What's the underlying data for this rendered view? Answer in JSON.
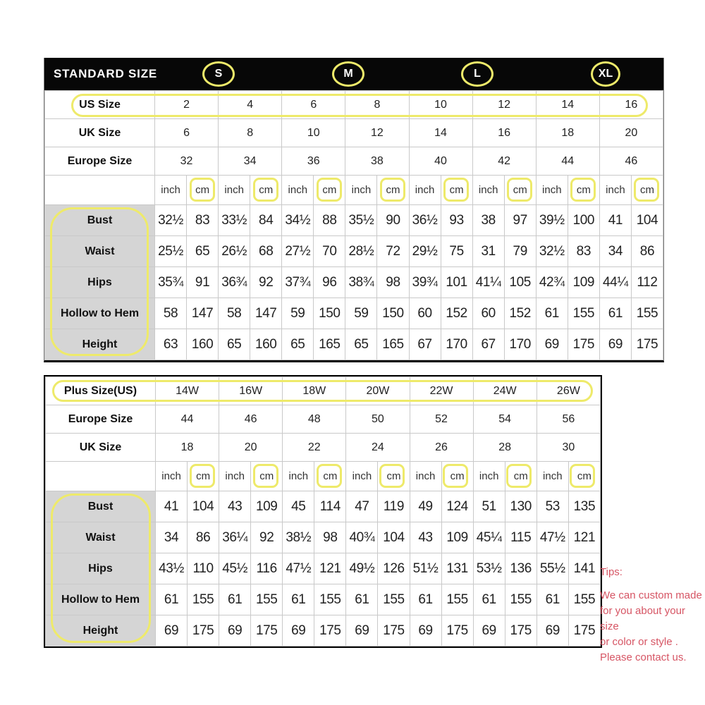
{
  "standard_table": {
    "title": "STANDARD SIZE",
    "header_sizes": [
      "S",
      "M",
      "L",
      "XL"
    ],
    "units": [
      "inch",
      "cm"
    ],
    "size_rows": [
      {
        "label": "US Size",
        "values": [
          "2",
          "4",
          "6",
          "8",
          "10",
          "12",
          "14",
          "16"
        ]
      },
      {
        "label": "UK Size",
        "values": [
          "6",
          "8",
          "10",
          "12",
          "14",
          "16",
          "18",
          "20"
        ]
      },
      {
        "label": "Europe Size",
        "values": [
          "32",
          "34",
          "36",
          "38",
          "40",
          "42",
          "44",
          "46"
        ]
      }
    ],
    "measurement_rows": [
      {
        "label": "Bust",
        "inch": [
          "32½",
          "33½",
          "34½",
          "35½",
          "36½",
          "38",
          "39½",
          "41"
        ],
        "cm": [
          "83",
          "84",
          "88",
          "90",
          "93",
          "97",
          "100",
          "104"
        ]
      },
      {
        "label": "Waist",
        "inch": [
          "25½",
          "26½",
          "27½",
          "28½",
          "29½",
          "31",
          "32½",
          "34"
        ],
        "cm": [
          "65",
          "68",
          "70",
          "72",
          "75",
          "79",
          "83",
          "86"
        ]
      },
      {
        "label": "Hips",
        "inch": [
          "35¾",
          "36¾",
          "37¾",
          "38¾",
          "39¾",
          "41¼",
          "42¾",
          "44¼"
        ],
        "cm": [
          "91",
          "92",
          "96",
          "98",
          "101",
          "105",
          "109",
          "112"
        ]
      },
      {
        "label": "Hollow to Hem",
        "inch": [
          "58",
          "58",
          "59",
          "59",
          "60",
          "60",
          "61",
          "61"
        ],
        "cm": [
          "147",
          "147",
          "150",
          "150",
          "152",
          "152",
          "155",
          "155"
        ]
      },
      {
        "label": "Height",
        "inch": [
          "63",
          "65",
          "65",
          "65",
          "67",
          "67",
          "69",
          "69"
        ],
        "cm": [
          "160",
          "160",
          "165",
          "165",
          "170",
          "170",
          "175",
          "175"
        ]
      }
    ]
  },
  "plus_table": {
    "units": [
      "inch",
      "cm"
    ],
    "size_rows": [
      {
        "label": "Plus Size(US)",
        "values": [
          "14W",
          "16W",
          "18W",
          "20W",
          "22W",
          "24W",
          "26W"
        ]
      },
      {
        "label": "Europe Size",
        "values": [
          "44",
          "46",
          "48",
          "50",
          "52",
          "54",
          "56"
        ]
      },
      {
        "label": "UK Size",
        "values": [
          "18",
          "20",
          "22",
          "24",
          "26",
          "28",
          "30"
        ]
      }
    ],
    "measurement_rows": [
      {
        "label": "Bust",
        "inch": [
          "41",
          "43",
          "45",
          "47",
          "49",
          "51",
          "53"
        ],
        "cm": [
          "104",
          "109",
          "114",
          "119",
          "124",
          "130",
          "135"
        ]
      },
      {
        "label": "Waist",
        "inch": [
          "34",
          "36¼",
          "38½",
          "40¾",
          "43",
          "45¼",
          "47½"
        ],
        "cm": [
          "86",
          "92",
          "98",
          "104",
          "109",
          "115",
          "121"
        ]
      },
      {
        "label": "Hips",
        "inch": [
          "43½",
          "45½",
          "47½",
          "49½",
          "51½",
          "53½",
          "55½"
        ],
        "cm": [
          "110",
          "116",
          "121",
          "126",
          "131",
          "136",
          "141"
        ]
      },
      {
        "label": "Hollow to Hem",
        "inch": [
          "61",
          "61",
          "61",
          "61",
          "61",
          "61",
          "61"
        ],
        "cm": [
          "155",
          "155",
          "155",
          "155",
          "155",
          "155",
          "155"
        ]
      },
      {
        "label": "Height",
        "inch": [
          "69",
          "69",
          "69",
          "69",
          "69",
          "69",
          "69"
        ],
        "cm": [
          "175",
          "175",
          "175",
          "175",
          "175",
          "175",
          "175"
        ]
      }
    ]
  },
  "tips": {
    "title": "Tips:",
    "lines": [
      "We can custom made",
      "for you about your size",
      "or color or style .",
      "Please contact us."
    ]
  },
  "colors": {
    "highlight": "#eeea6a",
    "tips_text": "#d65564",
    "header_bg": "#070707",
    "label_bg": "#d5d5d5",
    "grid_line": "#c9c9c9"
  }
}
